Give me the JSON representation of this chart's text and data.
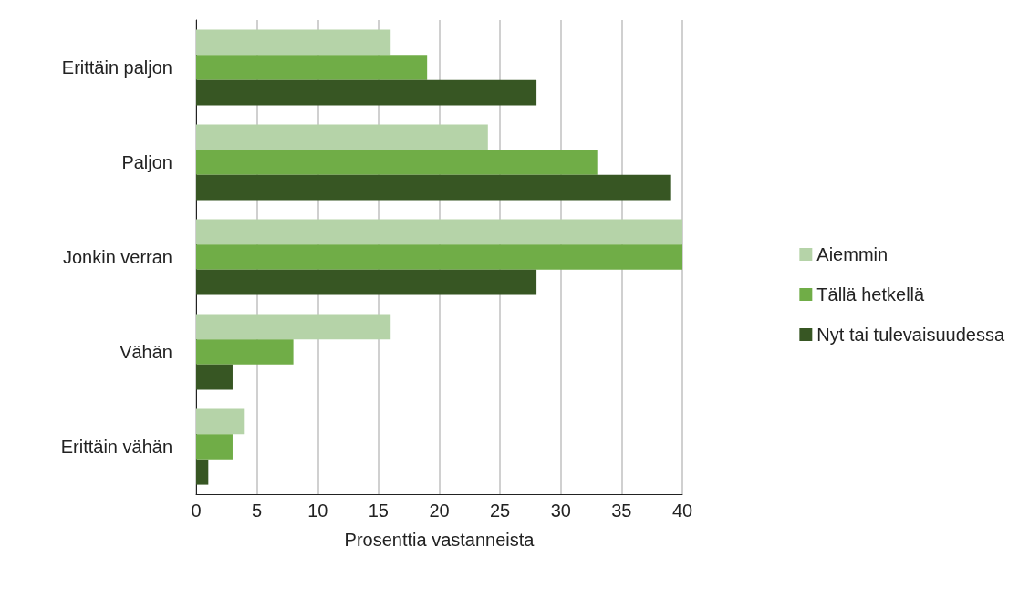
{
  "chart_data": {
    "type": "bar",
    "orientation": "horizontal",
    "xlabel": "Prosenttia vastanneista",
    "categories": [
      "Erittäin paljon",
      "Paljon",
      "Jonkin verran",
      "Vähän",
      "Erittäin vähän"
    ],
    "series": [
      {
        "name": "Aiemmin",
        "color": "#b5d3a8",
        "values": [
          16,
          24,
          40,
          16,
          4
        ]
      },
      {
        "name": "Tällä hetkellä",
        "color": "#70ad47",
        "values": [
          19,
          33,
          40,
          8,
          3
        ]
      },
      {
        "name": "Nyt tai tulevaisuudessa",
        "color": "#375623",
        "values": [
          28,
          39,
          28,
          3,
          1
        ]
      }
    ],
    "xlim": [
      0,
      40
    ],
    "xticks": [
      0,
      5,
      10,
      15,
      20,
      25,
      30,
      35,
      40
    ],
    "grid": "x",
    "legend": "right"
  }
}
